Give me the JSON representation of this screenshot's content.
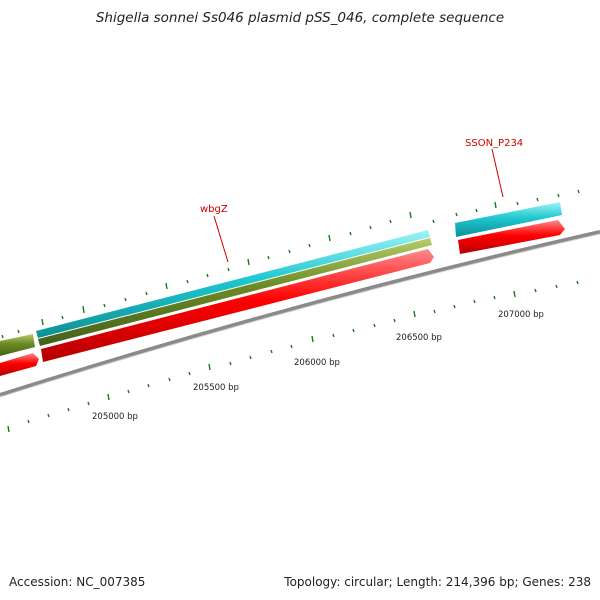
{
  "title": "Shigella sonnei Ss046 plasmid pSS_046, complete sequence",
  "accession": "Accession: NC_007385",
  "topology": "Topology: circular; Length: 214,396 bp; Genes: 238",
  "gene_labels": [
    "wbgZ",
    "SSON_P234"
  ],
  "position_labels": [
    "205000 bp",
    "205500 bp",
    "206000 bp",
    "206500 bp",
    "207000 bp"
  ],
  "colors": {
    "forward_cds": "#ff0000",
    "cyan_track": "#1fc8d0",
    "olive_track": "#6b8a24",
    "backbone": "#8a8a8a",
    "tick": "#1a7a1a",
    "label": "#cc0000"
  }
}
